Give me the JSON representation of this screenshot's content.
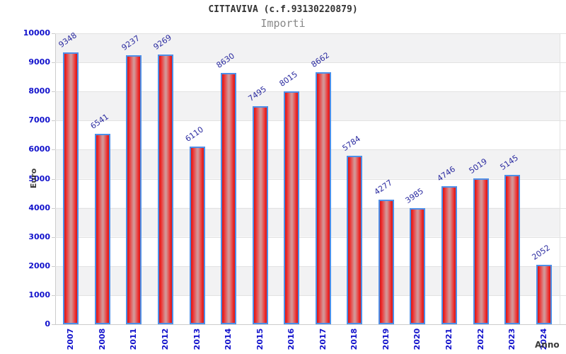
{
  "header": {
    "title": "CITTAVIVA (c.f.93130220879)",
    "subtitle": "Importi"
  },
  "chart_data": {
    "type": "bar",
    "title": "CITTAVIVA (c.f.93130220879)",
    "subtitle": "Importi",
    "xlabel": "Anno",
    "ylabel": "Euro",
    "categories": [
      "2007",
      "2008",
      "2011",
      "2012",
      "2013",
      "2014",
      "2015",
      "2016",
      "2017",
      "2018",
      "2019",
      "2020",
      "2021",
      "2022",
      "2023",
      "2024"
    ],
    "values": [
      9348,
      6541,
      9237,
      9269,
      6110,
      8630,
      7495,
      8015,
      8662,
      5784,
      4277,
      3985,
      4746,
      5019,
      5145,
      2052
    ],
    "ylim": [
      0,
      10000
    ],
    "ytick_step": 1000,
    "yticks": [
      0,
      1000,
      2000,
      3000,
      4000,
      5000,
      6000,
      7000,
      8000,
      9000,
      10000
    ],
    "grid": "horizontal gridlines with alternating shaded bands",
    "legend_position": "none",
    "value_label_rotation_deg": -35,
    "xtick_rotation_deg": -90,
    "colors": {
      "tick_label": "#1212cc",
      "value_label": "#2b2ba0",
      "axis_title": "#3a3a3a",
      "title": "#333333",
      "subtitle": "#888888",
      "bar_border": "#4d8fe8",
      "bar_edge": "#d31515",
      "bar_bright": "#ee2e2e",
      "bar_center": "#d49595",
      "band_shade": "#f2f2f3",
      "grid_line": "#e2e2e2",
      "axis_line": "#cccccc"
    }
  }
}
